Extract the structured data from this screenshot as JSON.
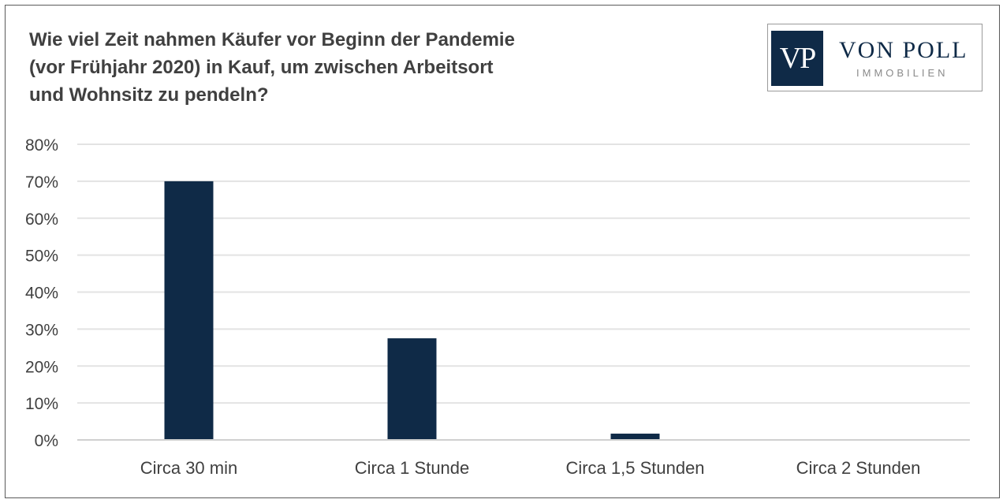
{
  "title": "Wie viel Zeit nahmen Käufer vor Beginn der Pandemie\n(vor Frühjahr 2020) in Kauf, um zwischen Arbeitsort\nund Wohnsitz zu pendeln?",
  "logo": {
    "mark": "VP",
    "name": "VON POLL",
    "sub": "IMMOBILIEN"
  },
  "colors": {
    "bar": "#0f2a47",
    "grid": "#e3e3e3",
    "axis": "#d0d0d0",
    "text": "#404040"
  },
  "chart_data": {
    "type": "bar",
    "categories": [
      "Circa 30 min",
      "Circa 1 Stunde",
      "Circa 1,5 Stunden",
      "Circa 2 Stunden"
    ],
    "values": [
      70,
      27.5,
      1.7,
      0
    ],
    "ylim": [
      0,
      80
    ],
    "yticks": [
      0,
      10,
      20,
      30,
      40,
      50,
      60,
      70,
      80
    ],
    "ytick_suffix": "%",
    "grid": true,
    "legend": "none"
  }
}
